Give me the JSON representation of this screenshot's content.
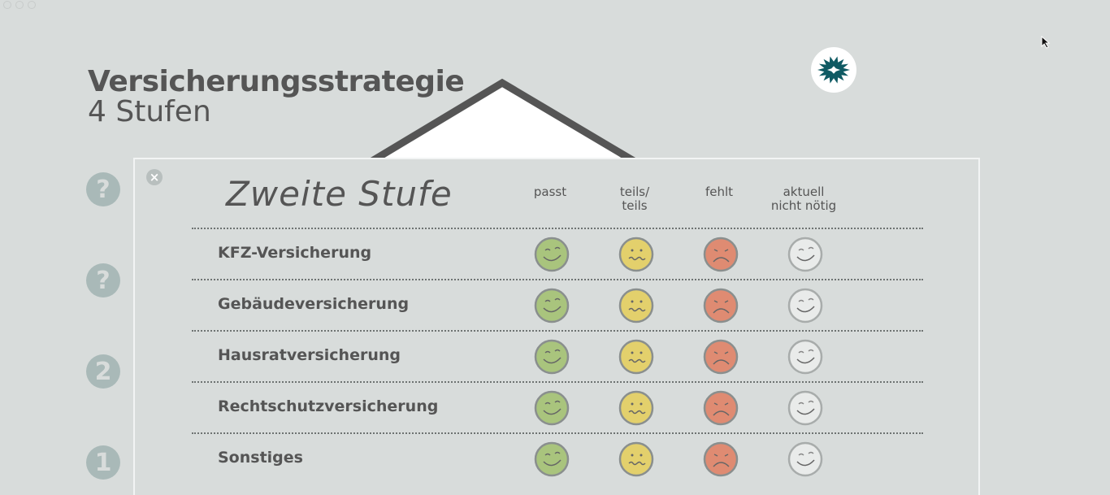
{
  "header": {
    "title": "Versicherungsstrategie",
    "subtitle": "4 Stufen"
  },
  "side_badges": [
    "?",
    "?",
    "2",
    "1"
  ],
  "panel": {
    "close_label": "×",
    "title": "Zweite Stufe",
    "columns": [
      "passt",
      "teils/\nteils",
      "fehlt",
      "aktuell\nnicht nötig"
    ],
    "rows": [
      "KFZ-Versicherung",
      "Gebäudeversicherung",
      "Hausratversicherung",
      "Rechtschutzversicherung",
      "Sonstiges"
    ]
  },
  "icons": {
    "smiley_colors": [
      "#a9c47d",
      "#e3d06c",
      "#df8b72",
      "#e9ebea"
    ],
    "burst_color": "#0f5a63"
  }
}
